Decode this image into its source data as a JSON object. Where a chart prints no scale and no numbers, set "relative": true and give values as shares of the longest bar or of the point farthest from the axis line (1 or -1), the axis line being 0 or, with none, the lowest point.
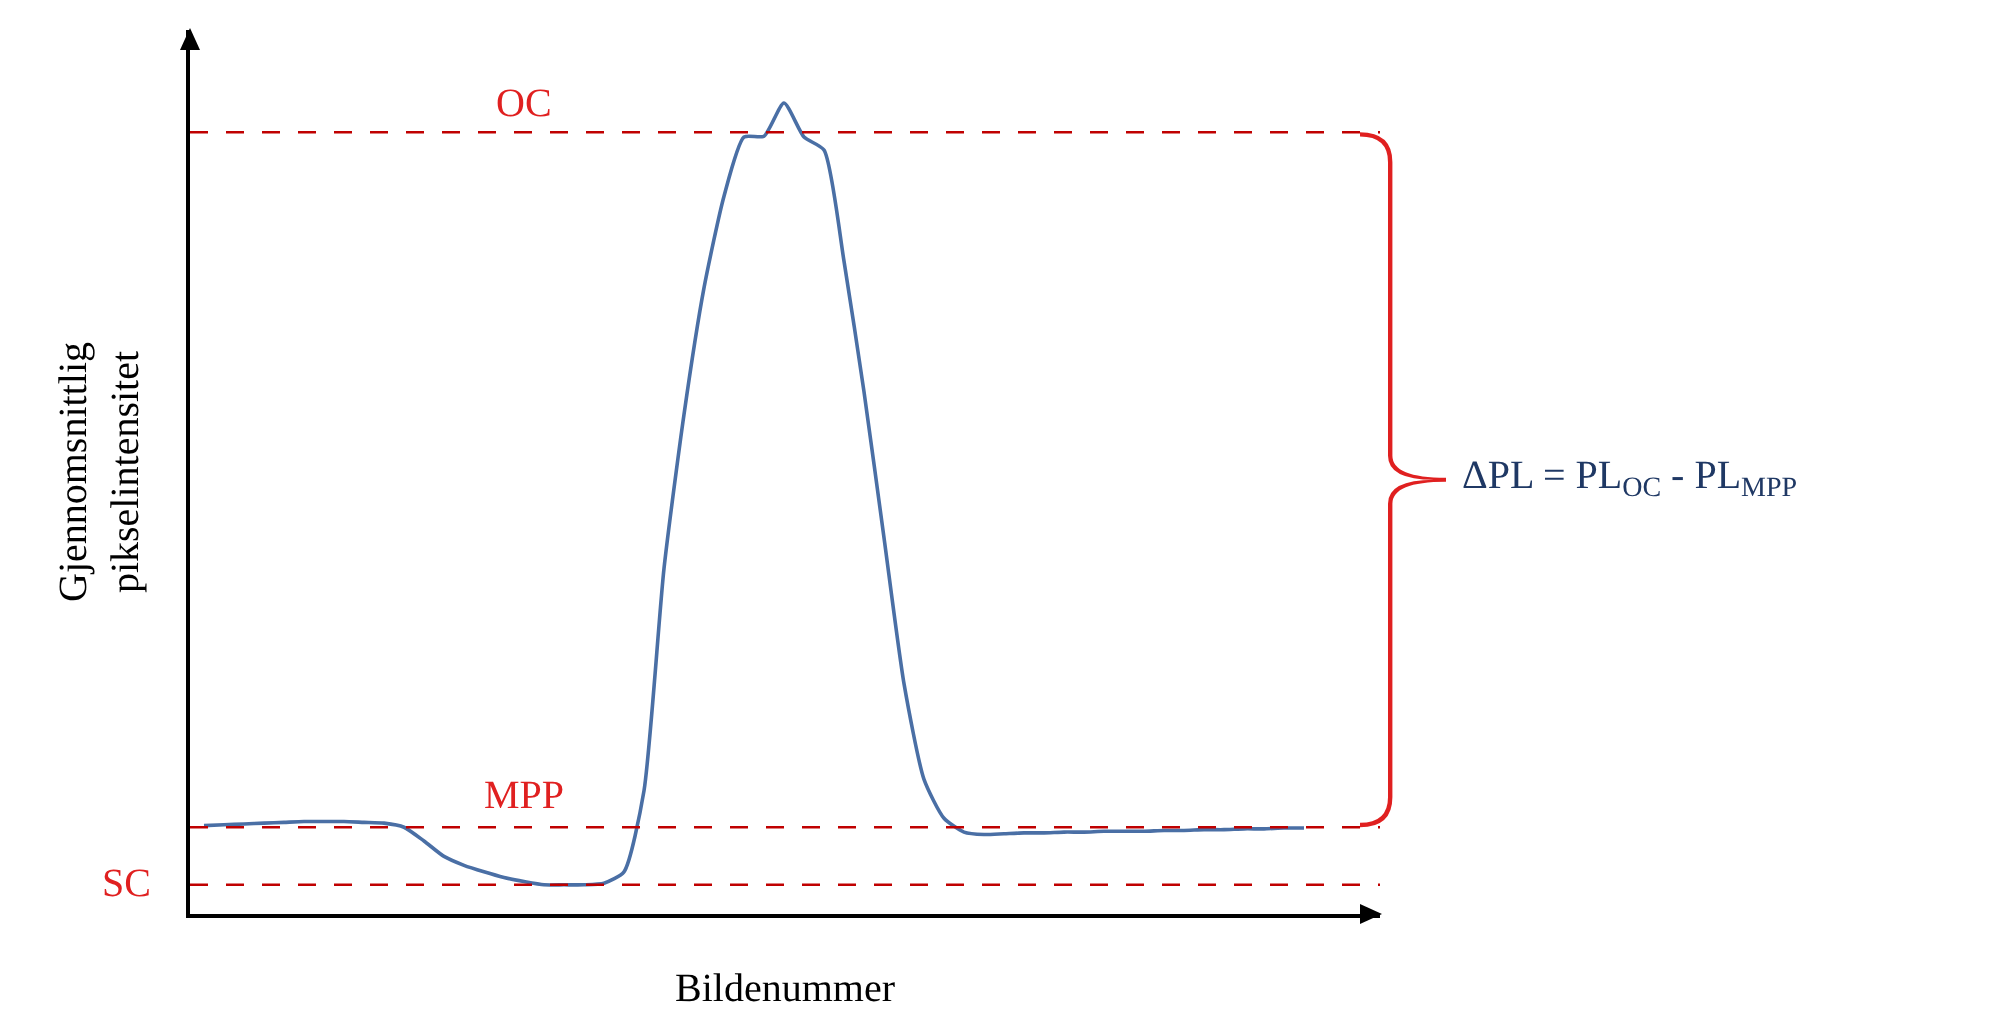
{
  "chart_data": {
    "type": "line",
    "relative": true,
    "xlabel": "Bildenummer",
    "ylabel": "Gjennomsnittlig pikselintensitet",
    "categories": [
      null,
      null,
      null,
      null,
      null,
      null,
      null,
      null,
      null,
      null,
      null,
      null,
      null,
      null,
      null,
      null,
      null,
      null,
      null,
      null,
      null,
      null,
      null,
      null,
      null,
      null,
      null,
      null,
      null,
      null,
      null,
      null,
      null,
      null,
      null,
      null,
      null,
      null,
      null,
      null,
      null,
      null,
      null,
      null,
      null,
      null,
      null,
      null,
      null,
      null,
      null,
      null,
      null,
      null,
      null,
      null,
      null,
      null,
      null
    ],
    "series": [
      {
        "color": "#4a6fa5",
        "values": [
          0.109,
          0.11,
          0.111,
          0.112,
          0.113,
          0.114,
          0.114,
          0.114,
          0.113,
          0.112,
          0.107,
          0.09,
          0.071,
          0.06,
          0.052,
          0.045,
          0.04,
          0.036,
          0.036,
          0.036,
          0.038,
          0.052,
          0.152,
          0.426,
          0.616,
          0.772,
          0.885,
          0.958,
          0.959,
          1.0,
          0.958,
          0.942,
          0.805,
          0.644,
          0.464,
          0.284,
          0.166,
          0.118,
          0.101,
          0.098,
          0.099,
          0.1,
          0.1,
          0.101,
          0.101,
          0.102,
          0.102,
          0.102,
          0.103,
          0.103,
          0.104,
          0.104,
          0.105,
          0.105,
          0.106,
          0.106,
          null,
          null,
          null
        ]
      }
    ],
    "ref_lines": [
      {
        "axis": "y",
        "value": 0.964,
        "label": "OC",
        "color": "#c00000",
        "line_style": "dashed"
      },
      {
        "axis": "y",
        "value": 0.107,
        "label": "MPP",
        "color": "#c00000",
        "line_style": "dashed"
      },
      {
        "axis": "y",
        "value": 0.036,
        "label": "SC",
        "color": "#c00000",
        "line_style": "dashed"
      }
    ],
    "annotations": [
      "ΔPL = PL$_{OC}$ - PL$_{MPP}$"
    ],
    "marker": "none",
    "line_style": "solid"
  }
}
